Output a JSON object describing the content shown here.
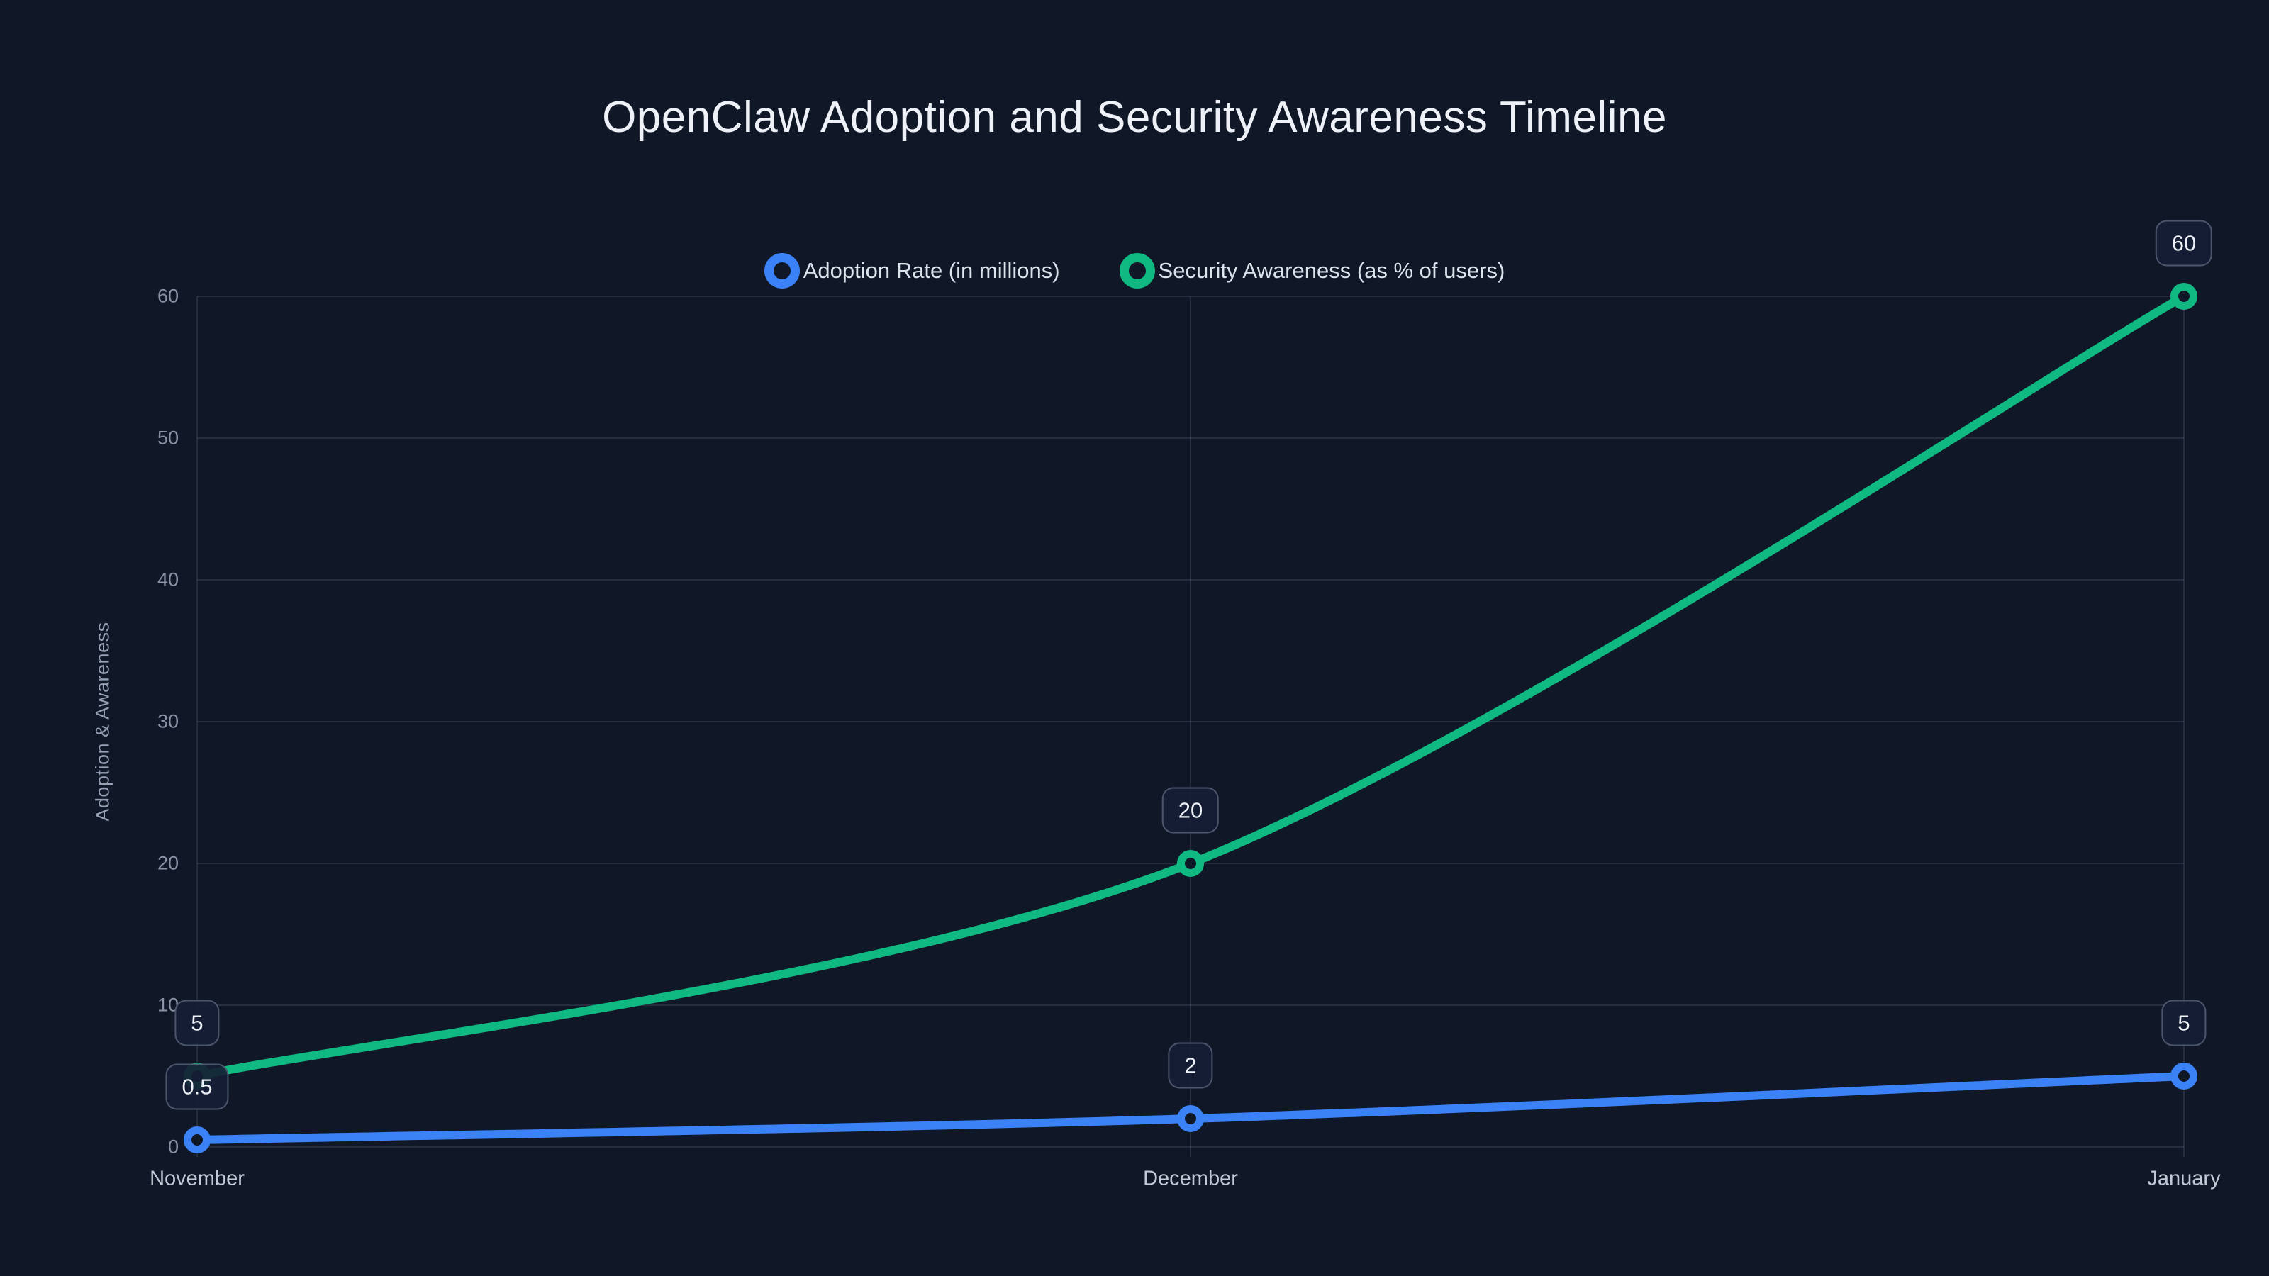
{
  "page": {
    "background_color": "#101727"
  },
  "chart_data": {
    "type": "line",
    "title": "OpenClaw Adoption and Security Awareness Timeline",
    "categories": [
      "November",
      "December",
      "January"
    ],
    "series": [
      {
        "name": "Adoption Rate (in millions)",
        "color": "#3b82f6",
        "values": [
          0.5,
          2,
          5
        ],
        "point_labels": [
          "0.5",
          "2",
          "5"
        ]
      },
      {
        "name": "Security Awareness (as % of users)",
        "color": "#10b981",
        "values": [
          5,
          20,
          60
        ],
        "point_labels": [
          "5",
          "20",
          "60"
        ]
      }
    ],
    "xlabel": "",
    "ylabel": "Adoption & Awareness",
    "ylim": [
      0,
      60
    ],
    "yticks": [
      0,
      10,
      20,
      30,
      40,
      50,
      60
    ],
    "grid": true,
    "legend_position": "top",
    "line_style": "curved",
    "point_style": "hollow-circle",
    "gridline_color": "rgba(148,163,184,0.16)",
    "tick_color": "#8993a5",
    "background_color": "#101727"
  }
}
